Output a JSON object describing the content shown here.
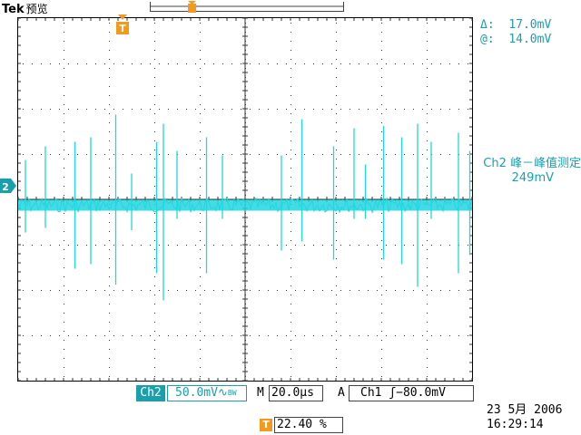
{
  "header": {
    "brand": "Tek",
    "mode": "预览"
  },
  "cursor_readout": {
    "delta_label": "Δ:",
    "delta_value": "17.0mV",
    "at_label": "@:",
    "at_value": "14.0mV"
  },
  "measurement": {
    "name": "Ch2 峰－峰值测定",
    "value": "249mV"
  },
  "channel_marker": "2",
  "trigger_marker": "T",
  "status_bar": {
    "channel_label": "Ch2",
    "volts_per_div": "50.0mV",
    "coupling_icon": "∿",
    "bw_icon": "BW",
    "timebase_label": "M",
    "timebase": "20.0µs",
    "trigger_mode": "A",
    "trigger_source": "Ch1",
    "trigger_slope": "ʃ",
    "trigger_level": "−80.0mV",
    "date": "23 5月  2006",
    "time": "16:29:14",
    "position_label": "T",
    "position": "22.40 %"
  },
  "colors": {
    "trace": "#21d6e0",
    "accent": "#1aa0ad",
    "trigger": "#f39a1e",
    "grid": "#333333"
  },
  "waveform": {
    "baseline_divs": 0.13,
    "noise_band_divs": 0.12,
    "spikes": [
      {
        "t": 0.16,
        "up": 1.0,
        "down": 0.6
      },
      {
        "t": 0.6,
        "up": 1.3,
        "down": 0.5
      },
      {
        "t": 1.25,
        "up": 1.4,
        "down": 1.4
      },
      {
        "t": 1.6,
        "up": 1.5,
        "down": 1.3
      },
      {
        "t": 2.15,
        "up": 2.0,
        "down": 1.75
      },
      {
        "t": 2.5,
        "up": 0.7,
        "down": 0.55
      },
      {
        "t": 3.05,
        "up": 1.4,
        "down": 1.5
      },
      {
        "t": 3.2,
        "up": 1.8,
        "down": 2.1
      },
      {
        "t": 3.5,
        "up": 1.2,
        "down": 0.3
      },
      {
        "t": 4.15,
        "up": 1.5,
        "down": 1.5
      },
      {
        "t": 4.5,
        "up": 1.1,
        "down": 0.3
      },
      {
        "t": 5.8,
        "up": 1.1,
        "down": 1.0
      },
      {
        "t": 6.25,
        "up": 1.9,
        "down": 0.8
      },
      {
        "t": 6.95,
        "up": 1.3,
        "down": 1.2
      },
      {
        "t": 7.4,
        "up": 1.7,
        "down": 0.3
      },
      {
        "t": 7.65,
        "up": 0.9,
        "down": 0.3
      },
      {
        "t": 8.05,
        "up": 1.75,
        "down": 1.2
      },
      {
        "t": 8.45,
        "up": 1.5,
        "down": 1.3
      },
      {
        "t": 8.8,
        "up": 1.8,
        "down": 1.8
      },
      {
        "t": 9.1,
        "up": 1.4,
        "down": 0.3
      },
      {
        "t": 9.7,
        "up": 1.6,
        "down": 1.5
      },
      {
        "t": 9.95,
        "up": 1.2,
        "down": 1.1
      }
    ]
  }
}
